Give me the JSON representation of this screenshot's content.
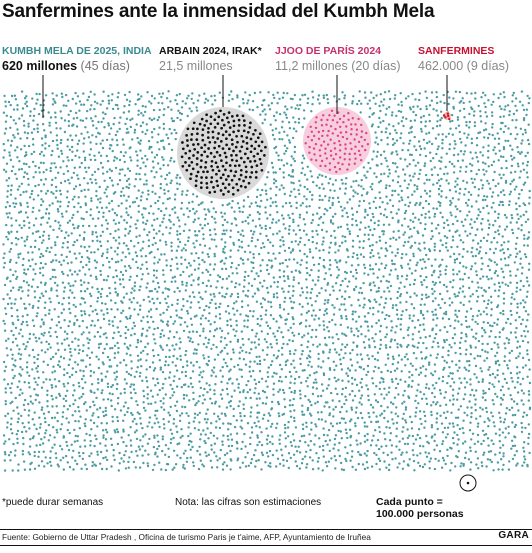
{
  "title": "Sanfermines ante la inmensidad del Kumbh Mela",
  "chart_data": {
    "type": "dot-density",
    "unit_label": "Cada punto = 100.000 personas",
    "unit_value": 100000,
    "series": [
      {
        "name": "KUMBH MELA DE 2025, INDIA",
        "value_text": "620 millones",
        "duration_text": "(45 días)",
        "value": 620000000,
        "color": "#4c9ca1"
      },
      {
        "name": "ARBAIN 2024, IRAK*",
        "value_text": "21,5 millones",
        "duration_text": "",
        "value": 21500000,
        "color": "#111111"
      },
      {
        "name": "JJOO DE PARÍS 2024",
        "value_text": "11,2 millones",
        "duration_text": "(20 días)",
        "value": 11200000,
        "color": "#e0457f"
      },
      {
        "name": "SANFERMINES",
        "value_text": "462.000",
        "duration_text": "(9 días)",
        "value": 462000,
        "color": "#d0121b"
      }
    ]
  },
  "footnote": "*puede durar semanas",
  "note": "Nota: las cifras son estimaciones",
  "legend": {
    "line1": "Cada punto =",
    "line2": "100.000 personas"
  },
  "source": "Fuente: Gobierno de Uttar Pradesh , Oficina de turismo Paris je t'aime, AFP, Ayuntamiento de Iruñea",
  "brand": "GARA"
}
